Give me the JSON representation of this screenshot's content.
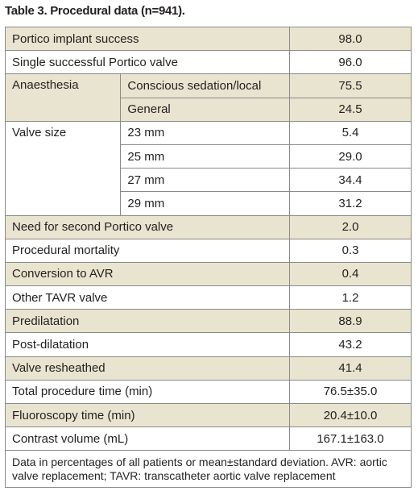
{
  "title": "Table 3. Procedural data (n=941).",
  "table": {
    "rows": [
      {
        "label": "Portico implant success",
        "value": "98.0"
      },
      {
        "label": "Single successful Portico valve",
        "value": "96.0"
      },
      {
        "label": "Anaesthesia",
        "items": [
          {
            "label": "Conscious sedation/local",
            "value": "75.5"
          },
          {
            "label": "General",
            "value": "24.5"
          }
        ]
      },
      {
        "label": "Valve size",
        "items": [
          {
            "label": "23 mm",
            "value": "5.4"
          },
          {
            "label": "25 mm",
            "value": "29.0"
          },
          {
            "label": "27 mm",
            "value": "34.4"
          },
          {
            "label": "29 mm",
            "value": "31.2"
          }
        ]
      },
      {
        "label": "Need for second Portico valve",
        "value": "2.0"
      },
      {
        "label": "Procedural mortality",
        "value": "0.3"
      },
      {
        "label": "Conversion to AVR",
        "value": "0.4"
      },
      {
        "label": "Other TAVR valve",
        "value": "1.2"
      },
      {
        "label": "Predilatation",
        "value": "88.9"
      },
      {
        "label": "Post-dilatation",
        "value": "43.2"
      },
      {
        "label": "Valve resheathed",
        "value": "41.4"
      },
      {
        "label": "Total procedure time (min)",
        "value": "76.5±35.0"
      },
      {
        "label": "Fluoroscopy time (min)",
        "value": "20.4±10.0"
      },
      {
        "label": "Contrast volume (mL)",
        "value": "167.1±163.0"
      }
    ],
    "footnote": "Data in percentages of all patients or mean±standard deviation. AVR: aortic valve replacement; TAVR: transcatheter aortic valve replacement"
  }
}
